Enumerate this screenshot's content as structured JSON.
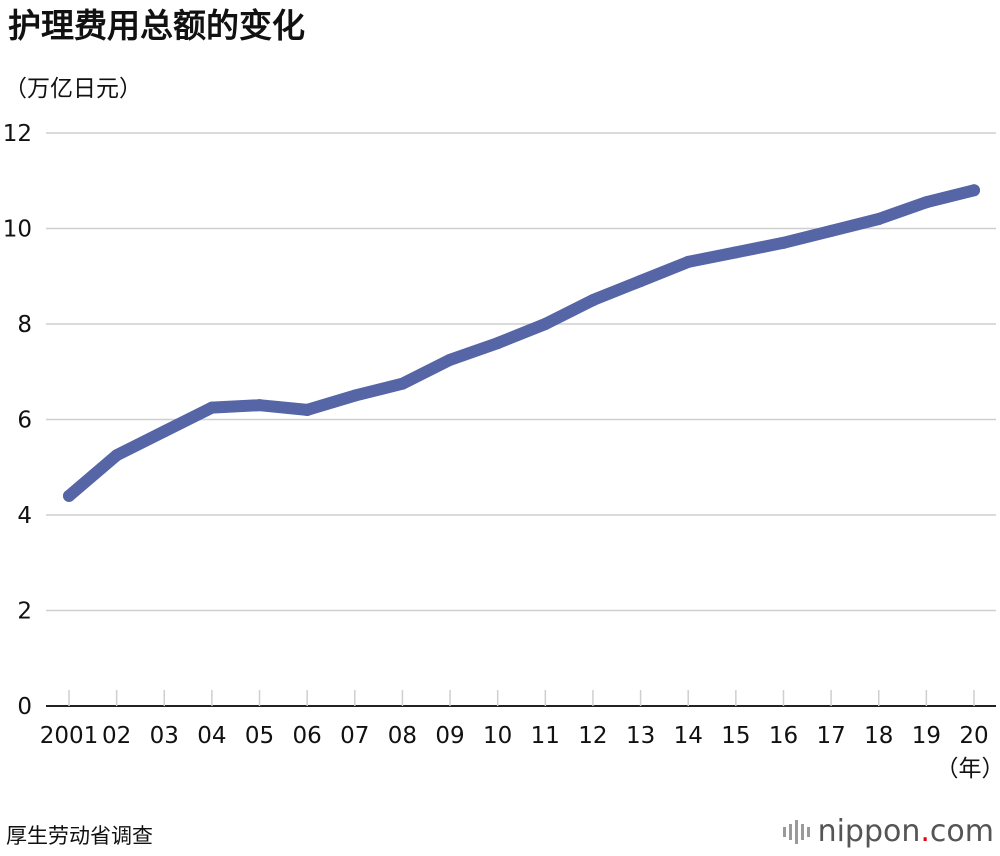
{
  "header": {
    "title": "护理费用总额的变化",
    "unit": "（万亿日元）"
  },
  "footer": {
    "source": "厚生劳动省调查",
    "brand_name": "nippon",
    "brand_dot": ".",
    "brand_tld": "com"
  },
  "colors": {
    "series": "#5565a6",
    "grid": "#cfcfcf",
    "axis": "#222222",
    "brand_dot": "#e60012"
  },
  "chart_data": {
    "type": "line",
    "title": "护理费用总额的变化",
    "ylabel": "（万亿日元）",
    "xlabel": "（年）",
    "categories": [
      "2001",
      "02",
      "03",
      "04",
      "05",
      "06",
      "07",
      "08",
      "09",
      "10",
      "11",
      "12",
      "13",
      "14",
      "15",
      "16",
      "17",
      "18",
      "19",
      "20"
    ],
    "y_ticks": [
      0,
      2,
      4,
      6,
      8,
      10,
      12
    ],
    "ylim": [
      0,
      12
    ],
    "grid": true,
    "legend": "none",
    "series": [
      {
        "values": [
          4.4,
          5.25,
          5.75,
          6.25,
          6.3,
          6.2,
          6.5,
          6.75,
          7.25,
          7.6,
          8.0,
          8.5,
          8.9,
          9.3,
          9.5,
          9.7,
          9.95,
          10.2,
          10.55,
          10.8
        ]
      }
    ]
  }
}
